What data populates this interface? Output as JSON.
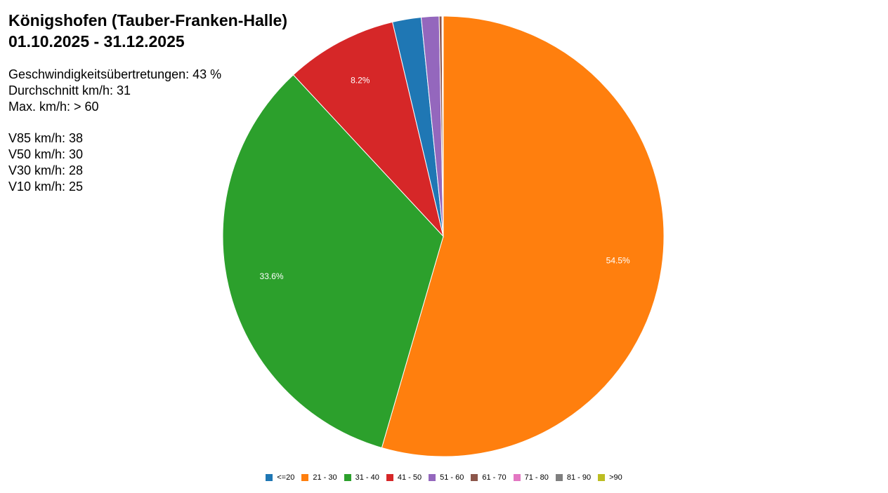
{
  "header": {
    "title": "Königshofen (Tauber-Franken-Halle)",
    "period": "01.10.2025 - 31.12.2025"
  },
  "stats": {
    "speeding": "Geschwindigkeitsübertretungen: 43 %",
    "average": "Durchschnitt km/h: 31",
    "max": "Max. km/h: > 60",
    "v85": "V85 km/h: 38",
    "v50": "V50 km/h: 30",
    "v30": "V30 km/h: 28",
    "v10": "V10 km/h: 25"
  },
  "chart_data": {
    "type": "pie",
    "title": "Königshofen (Tauber-Franken-Halle)",
    "subtitle": "01.10.2025 - 31.12.2025",
    "legend_position": "bottom",
    "start_angle": "12 o'clock",
    "direction": "clockwise",
    "slices": [
      {
        "label": "<=20",
        "value": 2.1,
        "color": "#1f77b4",
        "show_label": false
      },
      {
        "label": "21 - 30",
        "value": 54.5,
        "color": "#ff7f0e",
        "show_label": true,
        "value_label": "54.5%"
      },
      {
        "label": "31 - 40",
        "value": 33.6,
        "color": "#2ca02c",
        "show_label": true,
        "value_label": "33.6%"
      },
      {
        "label": "41 - 50",
        "value": 8.2,
        "color": "#d62728",
        "show_label": true,
        "value_label": "8.2%"
      },
      {
        "label": "51 - 60",
        "value": 1.3,
        "color": "#9467bd",
        "show_label": false
      },
      {
        "label": "61 - 70",
        "value": 0.2,
        "color": "#8c564b",
        "show_label": false
      },
      {
        "label": "71 - 80",
        "value": 0.05,
        "color": "#e377c2",
        "show_label": false
      },
      {
        "label": "81 - 90",
        "value": 0.05,
        "color": "#7f7f7f",
        "show_label": false
      },
      {
        "label": ">90",
        "value": 0.0,
        "color": "#bcbd22",
        "show_label": false
      }
    ],
    "draw_order": [
      "21 - 30",
      "31 - 40",
      "41 - 50",
      "<=20",
      "51 - 60",
      "61 - 70",
      "71 - 80",
      "81 - 90",
      ">90"
    ]
  }
}
